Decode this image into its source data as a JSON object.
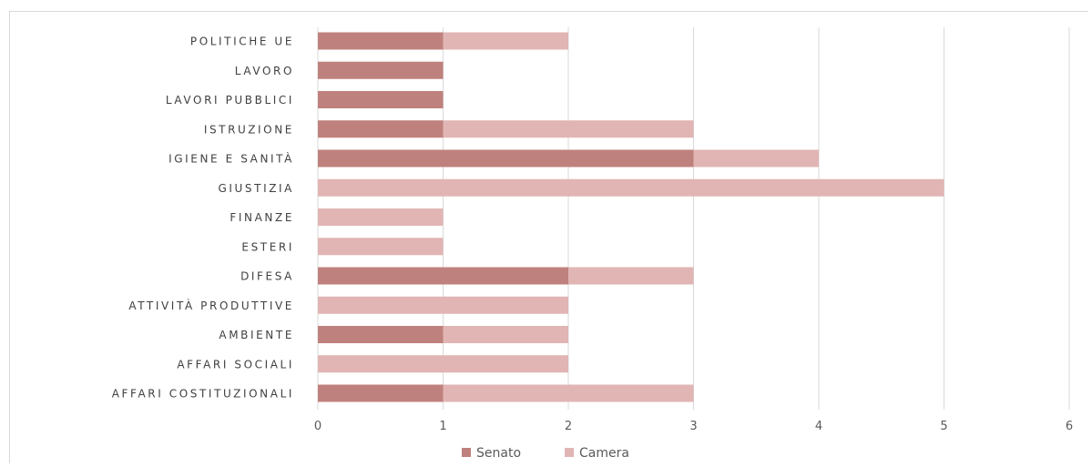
{
  "chart_data": {
    "type": "bar",
    "orientation": "horizontal",
    "stacked": true,
    "categories": [
      "POLITICHE UE",
      "LAVORO",
      "LAVORI PUBBLICI",
      "ISTRUZIONE",
      "IGIENE E SANITÀ",
      "GIUSTIZIA",
      "FINANZE",
      "ESTERI",
      "DIFESA",
      "ATTIVITÀ PRODUTTIVE",
      "AMBIENTE",
      "AFFARI SOCIALI",
      "AFFARI COSTITUZIONALI"
    ],
    "series": [
      {
        "name": "Senato",
        "color": "#bf817d",
        "values": [
          1,
          1,
          1,
          1,
          3,
          0,
          0,
          0,
          2,
          0,
          1,
          0,
          1
        ]
      },
      {
        "name": "Camera",
        "color": "#e1b5b4",
        "values": [
          1,
          0,
          0,
          2,
          1,
          5,
          1,
          1,
          1,
          2,
          1,
          2,
          2
        ]
      }
    ],
    "xlim": [
      0,
      6
    ],
    "xticks": [
      "0",
      "1",
      "2",
      "3",
      "4",
      "5",
      "6"
    ],
    "grid": true,
    "legend_position": "bottom"
  }
}
